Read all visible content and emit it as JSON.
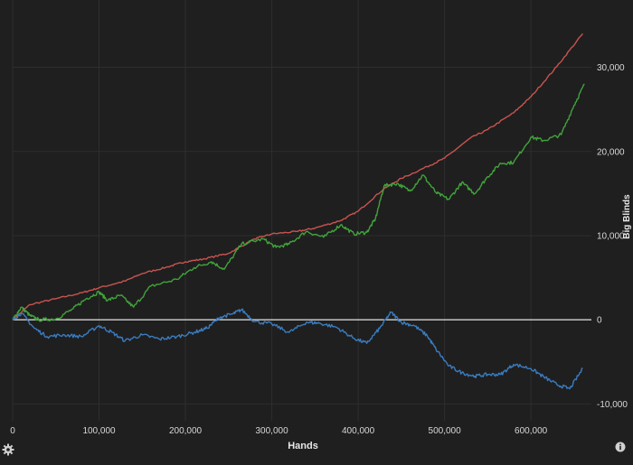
{
  "chart_data": {
    "type": "line",
    "xlabel": "Hands",
    "ylabel": "Big Blinds",
    "xlim": [
      0,
      670000
    ],
    "ylim": [
      -12000,
      38000
    ],
    "x_ticks": [
      {
        "value": 0,
        "label": "0"
      },
      {
        "value": 100000,
        "label": "100,000"
      },
      {
        "value": 200000,
        "label": "200,000"
      },
      {
        "value": 300000,
        "label": "300,000"
      },
      {
        "value": 400000,
        "label": "400,000"
      },
      {
        "value": 500000,
        "label": "500,000"
      },
      {
        "value": 600000,
        "label": "600,000"
      }
    ],
    "y_ticks": [
      {
        "value": -10000,
        "label": "-10,000"
      },
      {
        "value": 0,
        "label": "0"
      },
      {
        "value": 10000,
        "label": "10,000"
      },
      {
        "value": 20000,
        "label": "20,000"
      },
      {
        "value": 30000,
        "label": "30,000"
      }
    ],
    "y_axis_position": "right",
    "grid": true,
    "zero_line": true,
    "series": [
      {
        "color": "#c85450",
        "x": [
          0,
          20000,
          50000,
          80000,
          100000,
          130000,
          150000,
          180000,
          200000,
          220000,
          250000,
          280000,
          300000,
          330000,
          350000,
          380000,
          400000,
          430000,
          450000,
          480000,
          500000,
          530000,
          550000,
          580000,
          600000,
          630000,
          660000
        ],
        "values": [
          0,
          1800,
          2500,
          3200,
          3800,
          4600,
          5500,
          6300,
          6900,
          7200,
          7900,
          9600,
          10200,
          10500,
          10900,
          11800,
          12900,
          15600,
          16800,
          18200,
          19200,
          21600,
          22600,
          24600,
          26500,
          30100,
          34000
        ]
      },
      {
        "color": "#41a33b",
        "x": [
          0,
          10000,
          20000,
          30000,
          50000,
          70000,
          85000,
          100000,
          110000,
          125000,
          140000,
          160000,
          190000,
          210000,
          230000,
          245000,
          265000,
          290000,
          305000,
          320000,
          340000,
          360000,
          380000,
          395000,
          410000,
          420000,
          430000,
          445000,
          460000,
          475000,
          490000,
          505000,
          520000,
          535000,
          550000,
          565000,
          580000,
          600000,
          615000,
          635000,
          650000,
          662000
        ],
        "values": [
          0,
          1500,
          500,
          0,
          100,
          1300,
          2500,
          3300,
          2300,
          2900,
          1500,
          4000,
          4800,
          6200,
          6900,
          6000,
          9000,
          9600,
          8600,
          9000,
          10500,
          9800,
          11300,
          10200,
          10400,
          12000,
          15900,
          16200,
          15300,
          17200,
          15100,
          14300,
          16300,
          15000,
          17000,
          18600,
          18700,
          21700,
          21300,
          22000,
          25500,
          28000
        ]
      },
      {
        "color": "#3a7cc0",
        "x": [
          0,
          10000,
          25000,
          40000,
          60000,
          80000,
          100000,
          115000,
          130000,
          150000,
          170000,
          190000,
          210000,
          225000,
          240000,
          255000,
          265000,
          280000,
          300000,
          320000,
          340000,
          355000,
          375000,
          395000,
          410000,
          425000,
          438000,
          450000,
          465000,
          480000,
          490000,
          505000,
          520000,
          535000,
          550000,
          565000,
          580000,
          600000,
          615000,
          630000,
          645000,
          660000
        ],
        "values": [
          0,
          800,
          -1000,
          -2000,
          -1800,
          -2000,
          -700,
          -1500,
          -2500,
          -1800,
          -2300,
          -2000,
          -1500,
          -1000,
          300,
          700,
          1200,
          -200,
          -500,
          -1500,
          -300,
          -400,
          -900,
          -2200,
          -2800,
          -1000,
          900,
          -300,
          -700,
          -1900,
          -3500,
          -5500,
          -6300,
          -6700,
          -6500,
          -6500,
          -5300,
          -5800,
          -6800,
          -7700,
          -8200,
          -5800
        ]
      }
    ]
  },
  "ui": {
    "settings_icon": "gear-icon",
    "info_icon": "info-icon"
  }
}
